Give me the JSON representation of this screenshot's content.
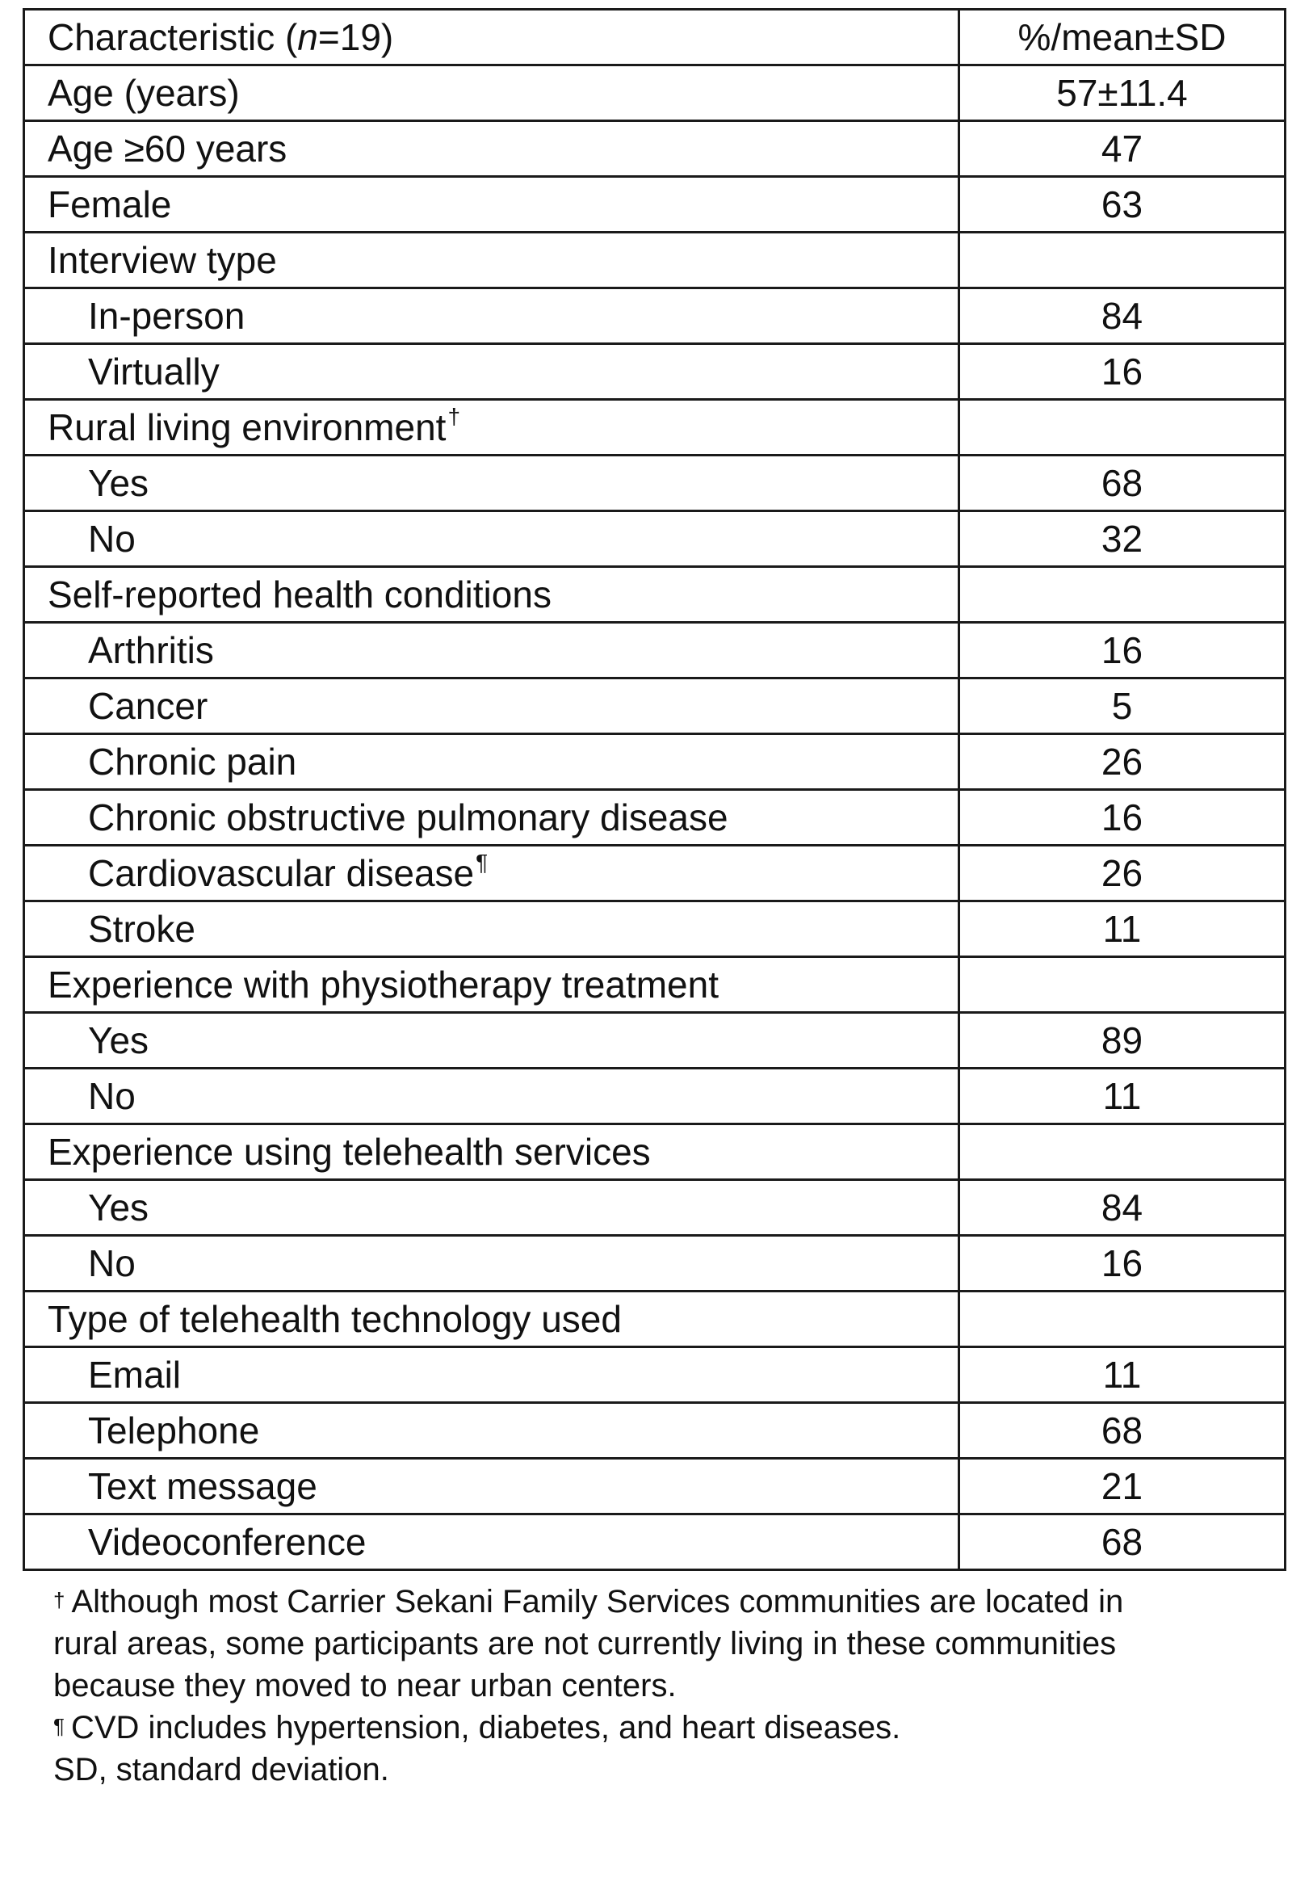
{
  "table": {
    "header": {
      "characteristic_prefix": "Characteristic (",
      "characteristic_n": "n",
      "characteristic_suffix": "=19)",
      "value": "%/mean±SD"
    },
    "rows": [
      {
        "label": "Age (years)",
        "value": "57±11.4"
      },
      {
        "label": "Age ≥60 years",
        "value": "47"
      },
      {
        "label": "Female",
        "value": "63"
      },
      {
        "label": "Interview type",
        "value": ""
      },
      {
        "label": "In-person",
        "value": "84"
      },
      {
        "label": "Virtually",
        "value": "16"
      },
      {
        "label": "Rural living environment",
        "mark": "†",
        "value": ""
      },
      {
        "label": "Yes",
        "value": "68"
      },
      {
        "label": "No",
        "value": "32"
      },
      {
        "label": "Self-reported health conditions",
        "value": ""
      },
      {
        "label": "Arthritis",
        "value": "16"
      },
      {
        "label": "Cancer",
        "value": "5"
      },
      {
        "label": "Chronic pain",
        "value": "26"
      },
      {
        "label": "Chronic obstructive pulmonary disease",
        "value": "16"
      },
      {
        "label": "Cardiovascular disease",
        "mark": "¶",
        "value": "26"
      },
      {
        "label": "Stroke",
        "value": "11"
      },
      {
        "label": "Experience with physiotherapy treatment",
        "value": ""
      },
      {
        "label": "Yes",
        "value": "89"
      },
      {
        "label": "No",
        "value": "11"
      },
      {
        "label": "Experience using telehealth services",
        "value": ""
      },
      {
        "label": "Yes",
        "value": "84"
      },
      {
        "label": "No",
        "value": "16"
      },
      {
        "label": "Type of telehealth technology used",
        "value": ""
      },
      {
        "label": "Email",
        "value": "11"
      },
      {
        "label": "Telephone",
        "value": "68"
      },
      {
        "label": "Text message",
        "value": "21"
      },
      {
        "label": "Videoconference",
        "value": "68"
      }
    ]
  },
  "footnotes": {
    "dagger_symbol": "†",
    "dagger_line1": "Although most Carrier Sekani Family Services communities are located in",
    "dagger_line2": "rural areas, some participants are not currently living in these communities",
    "dagger_line3": "because they moved to near urban centers.",
    "pilcrow_symbol": "¶",
    "pilcrow_text": "CVD includes hypertension, diabetes, and heart diseases.",
    "abbrev": "SD, standard deviation."
  }
}
